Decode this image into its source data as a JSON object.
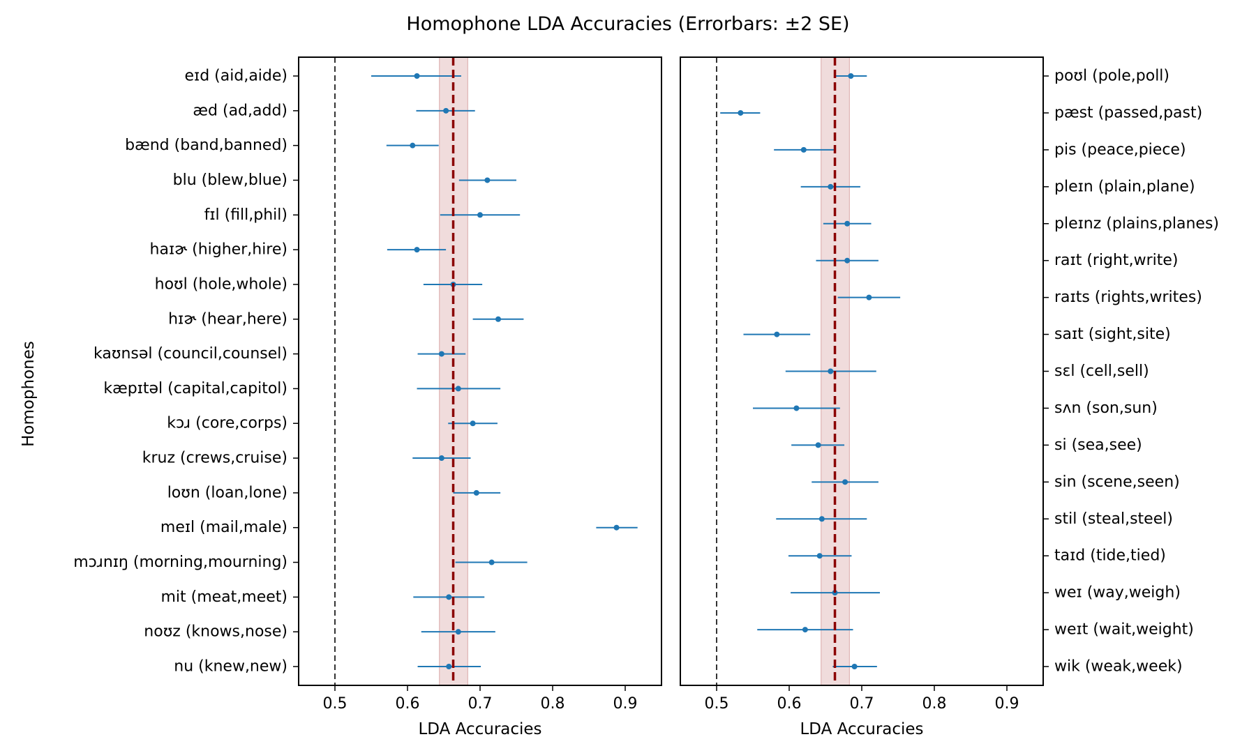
{
  "chart_data": {
    "type": "scatter",
    "title": "Homophone LDA Accuracies (Errorbars: ±2 SE)",
    "ylabel": "Homophones",
    "xlim": [
      0.45,
      0.95
    ],
    "xticks": [
      0.5,
      0.6,
      0.7,
      0.8,
      0.9
    ],
    "reference_line": 0.5,
    "mean_line": 0.663,
    "mean_band": [
      0.644,
      0.683
    ],
    "colors": {
      "points": "#1f77b4",
      "mean_line": "#8b0000",
      "mean_band": "#e6c4c4",
      "reference_line": "#333333"
    },
    "panels": [
      {
        "xlabel": "LDA Accuracies",
        "label_side": "left",
        "items": [
          {
            "label": "eɪd (aid,aide)",
            "value": 0.613,
            "lo": 0.55,
            "hi": 0.674
          },
          {
            "label": "æd (ad,add)",
            "value": 0.653,
            "lo": 0.612,
            "hi": 0.693
          },
          {
            "label": "bænd (band,banned)",
            "value": 0.607,
            "lo": 0.571,
            "hi": 0.643
          },
          {
            "label": "blu (blew,blue)",
            "value": 0.71,
            "lo": 0.671,
            "hi": 0.75
          },
          {
            "label": "fɪl (fill,phil)",
            "value": 0.7,
            "lo": 0.645,
            "hi": 0.755
          },
          {
            "label": "haɪɚ (higher,hire)",
            "value": 0.613,
            "lo": 0.572,
            "hi": 0.653
          },
          {
            "label": "hoʊl (hole,whole)",
            "value": 0.663,
            "lo": 0.622,
            "hi": 0.703
          },
          {
            "label": "hɪɚ (hear,here)",
            "value": 0.725,
            "lo": 0.69,
            "hi": 0.76
          },
          {
            "label": "kaʊnsəl (council,counsel)",
            "value": 0.647,
            "lo": 0.614,
            "hi": 0.68
          },
          {
            "label": "kæpɪtəl (capital,capitol)",
            "value": 0.67,
            "lo": 0.613,
            "hi": 0.728
          },
          {
            "label": "kɔɹ (core,corps)",
            "value": 0.69,
            "lo": 0.656,
            "hi": 0.724
          },
          {
            "label": "kruz (crews,cruise)",
            "value": 0.647,
            "lo": 0.607,
            "hi": 0.687
          },
          {
            "label": "loʊn (loan,lone)",
            "value": 0.695,
            "lo": 0.663,
            "hi": 0.728
          },
          {
            "label": "meɪl (mail,male)",
            "value": 0.888,
            "lo": 0.86,
            "hi": 0.917
          },
          {
            "label": "mɔɹnɪŋ (morning,mourning)",
            "value": 0.716,
            "lo": 0.666,
            "hi": 0.765
          },
          {
            "label": "mit (meat,meet)",
            "value": 0.657,
            "lo": 0.608,
            "hi": 0.706
          },
          {
            "label": "noʊz (knows,nose)",
            "value": 0.67,
            "lo": 0.619,
            "hi": 0.721
          },
          {
            "label": "nu (knew,new)",
            "value": 0.657,
            "lo": 0.614,
            "hi": 0.701
          }
        ]
      },
      {
        "xlabel": "LDA Accuracies",
        "label_side": "right",
        "items": [
          {
            "label": "poʊl (pole,poll)",
            "value": 0.685,
            "lo": 0.663,
            "hi": 0.707
          },
          {
            "label": "pæst (passed,past)",
            "value": 0.533,
            "lo": 0.505,
            "hi": 0.56
          },
          {
            "label": "pis (peace,piece)",
            "value": 0.62,
            "lo": 0.579,
            "hi": 0.662
          },
          {
            "label": "pleɪn (plain,plane)",
            "value": 0.657,
            "lo": 0.616,
            "hi": 0.698
          },
          {
            "label": "pleɪnz (plains,planes)",
            "value": 0.68,
            "lo": 0.647,
            "hi": 0.713
          },
          {
            "label": "raɪt (right,write)",
            "value": 0.68,
            "lo": 0.637,
            "hi": 0.723
          },
          {
            "label": "raɪts (rights,writes)",
            "value": 0.71,
            "lo": 0.667,
            "hi": 0.753
          },
          {
            "label": "saɪt (sight,site)",
            "value": 0.583,
            "lo": 0.537,
            "hi": 0.629
          },
          {
            "label": "sɛl (cell,sell)",
            "value": 0.657,
            "lo": 0.595,
            "hi": 0.72
          },
          {
            "label": "sʌn (son,sun)",
            "value": 0.61,
            "lo": 0.55,
            "hi": 0.67
          },
          {
            "label": "si (sea,see)",
            "value": 0.64,
            "lo": 0.603,
            "hi": 0.676
          },
          {
            "label": "sin (scene,seen)",
            "value": 0.677,
            "lo": 0.631,
            "hi": 0.723
          },
          {
            "label": "stil (steal,steel)",
            "value": 0.645,
            "lo": 0.582,
            "hi": 0.707
          },
          {
            "label": "taɪd (tide,tied)",
            "value": 0.642,
            "lo": 0.599,
            "hi": 0.686
          },
          {
            "label": "weɪ (way,weigh)",
            "value": 0.663,
            "lo": 0.602,
            "hi": 0.725
          },
          {
            "label": "weɪt (wait,weight)",
            "value": 0.622,
            "lo": 0.556,
            "hi": 0.688
          },
          {
            "label": "wik (weak,week)",
            "value": 0.69,
            "lo": 0.66,
            "hi": 0.721
          }
        ]
      }
    ]
  }
}
